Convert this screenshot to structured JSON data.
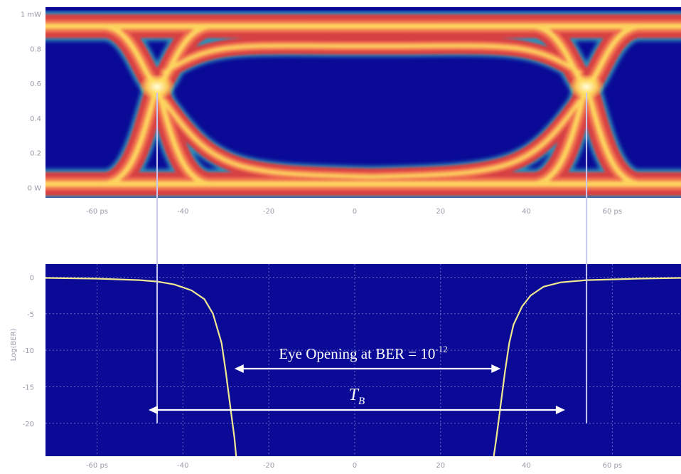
{
  "chart_data": [
    {
      "type": "heatmap",
      "subtype": "eye-diagram",
      "x_ticks": [
        "-60 ps",
        "-40",
        "-20",
        "0",
        "20",
        "40",
        "60 ps"
      ],
      "x_tick_values": [
        -60,
        -40,
        -20,
        0,
        20,
        40,
        60
      ],
      "xlim": [
        -72,
        76
      ],
      "y_ticks": [
        "0 W",
        "0.2",
        "0.4",
        "0.6",
        "0.8",
        "1 mW"
      ],
      "y_tick_values": [
        0,
        0.2,
        0.4,
        0.6,
        0.8,
        1.0
      ],
      "ylim": [
        -0.06,
        1.04
      ],
      "levels": {
        "low": 0.02,
        "high": 0.93
      },
      "crossings": [
        {
          "x": -46,
          "y": 0.58
        },
        {
          "x": 54,
          "y": 0.58
        }
      ],
      "background_color": "#0a0a96",
      "trace_colors": [
        "#30a8c0",
        "#e03c3c",
        "#f06a50",
        "#ffe060",
        "#fffde0"
      ]
    },
    {
      "type": "line",
      "ylabel": "Log(BER)",
      "x_ticks": [
        "-60 ps",
        "-40",
        "-20",
        "0",
        "20",
        "40",
        "60 ps"
      ],
      "x_tick_values": [
        -60,
        -40,
        -20,
        0,
        20,
        40,
        60
      ],
      "xlim": [
        -72,
        76
      ],
      "y_ticks": [
        "0",
        "-5",
        "-10",
        "-15",
        "-20"
      ],
      "y_tick_values": [
        0,
        -5,
        -10,
        -15,
        -20
      ],
      "ylim": [
        -24.5,
        1.8
      ],
      "grid": true,
      "series": [
        {
          "color": "#f0e890",
          "x": [
            -72,
            -60,
            -50,
            -46,
            -42,
            -38,
            -35,
            -33,
            -31,
            -30,
            -29,
            -28,
            -27.6
          ],
          "y": [
            -0.1,
            -0.2,
            -0.4,
            -0.6,
            -1.0,
            -1.8,
            -3.0,
            -5.0,
            -9.0,
            -13.0,
            -17.5,
            -22.0,
            -24.5
          ]
        },
        {
          "color": "#f0e890",
          "x": [
            32.4,
            33,
            34,
            35,
            36,
            37,
            39,
            41,
            44,
            48,
            54,
            60,
            66,
            76
          ],
          "y": [
            -24.5,
            -22.0,
            -17.5,
            -13.0,
            -9.0,
            -6.5,
            -4.0,
            -2.5,
            -1.3,
            -0.7,
            -0.4,
            -0.3,
            -0.2,
            -0.1
          ]
        }
      ],
      "annotations": {
        "eye_opening_text": "Eye Opening at BER = 10",
        "eye_opening_exp": "-12",
        "eye_opening_range": [
          -28,
          34
        ],
        "tb_text": "T",
        "tb_sub": "B",
        "tb_range": [
          -48,
          49
        ]
      }
    }
  ]
}
